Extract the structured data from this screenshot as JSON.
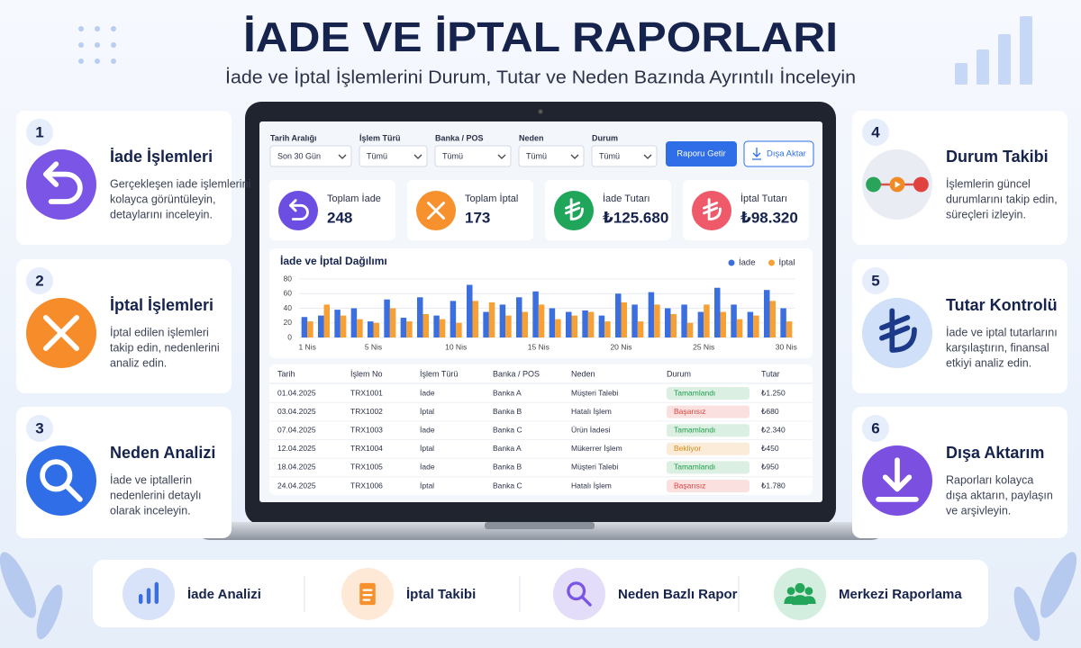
{
  "header": {
    "title": "İADE VE İPTAL RAPORLARI",
    "subtitle": "İade ve İptal İşlemlerini Durum, Tutar ve Neden Bazında Ayrıntılı İnceleyin"
  },
  "features": [
    {
      "number": 1,
      "title": "İade İşlemleri",
      "description": [
        "Gerçekleşen iade işlemlerini",
        "kolayca görüntüleyin,",
        "detaylarını inceleyin."
      ],
      "color": "#7a55e6"
    },
    {
      "number": 2,
      "title": "İptal İşlemleri",
      "description": [
        "İptal edilen işlemleri",
        "takip edin, nedenlerini",
        "analiz edin."
      ],
      "color": "#f78d2a"
    },
    {
      "number": 3,
      "title": "Neden Analizi",
      "description": [
        "İade ve iptallerin",
        "nedenlerini detaylı",
        "olarak inceleyin."
      ],
      "color": "#2f6ee6"
    },
    {
      "number": 4,
      "title": "Durum Takibi",
      "description": [
        "İşlemlerin güncel",
        "durumlarını takip edin,",
        "süreçleri izleyin."
      ],
      "color": "#e9edf3"
    },
    {
      "number": 5,
      "title": "Tutar Kontrolü",
      "description": [
        "İade ve iptal tutarlarını",
        "karşılaştırın, finansal",
        "etkiyi analiz edin."
      ],
      "color": "#cfe0f8"
    },
    {
      "number": 6,
      "title": "Dışa Aktarım",
      "description": [
        "Raporları kolayca",
        "dışa aktarın, paylaşın",
        "ve arşivleyin."
      ],
      "color": "#7b4fe0"
    }
  ],
  "dashboard": {
    "filters": [
      {
        "label": "Tarih Aralığı",
        "value": "Son 30 Gün"
      },
      {
        "label": "İşlem Türü",
        "value": "Tümü"
      },
      {
        "label": "Banka / POS",
        "value": "Tümü"
      },
      {
        "label": "Neden",
        "value": "Tümü"
      },
      {
        "label": "Durum",
        "value": "Tümü"
      }
    ],
    "buttons": [
      "Raporu Getir",
      "Dışa Aktar"
    ],
    "stats": [
      {
        "label": "Toplam İade",
        "value": 248,
        "color": "#6c4ee3"
      },
      {
        "label": "Toplam İptal",
        "value": 173,
        "color": "#f7912d"
      },
      {
        "label": "İade Tutarı",
        "value": "₺125.680",
        "color": "#1fa65a"
      },
      {
        "label": "İptal Tutarı",
        "value": "₺98.320",
        "color": "#ee5a6a"
      }
    ]
  },
  "chart_data": {
    "type": "bar",
    "title": "İade ve İptal Dağılımı",
    "categories": [
      "1 Nis",
      null,
      null,
      null,
      "5 Nis",
      null,
      null,
      null,
      null,
      "10 Nis",
      null,
      null,
      null,
      null,
      "15 Nis",
      null,
      null,
      null,
      null,
      "20 Nis",
      null,
      null,
      null,
      null,
      "25 Nis",
      null,
      null,
      null,
      null,
      "30 Nis"
    ],
    "series": [
      {
        "name": "İade",
        "color": "#3b6fe0",
        "values": [
          28,
          30,
          38,
          40,
          22,
          52,
          27,
          55,
          30,
          50,
          72,
          35,
          45,
          55,
          63,
          40,
          35,
          37,
          30,
          60,
          45,
          62,
          40,
          45,
          35,
          68,
          45,
          35,
          65,
          40
        ]
      },
      {
        "name": "İptal",
        "color": "#f7a035",
        "values": [
          22,
          45,
          30,
          25,
          20,
          40,
          22,
          32,
          25,
          20,
          50,
          48,
          30,
          35,
          45,
          25,
          30,
          35,
          22,
          48,
          22,
          45,
          32,
          20,
          45,
          35,
          25,
          30,
          50,
          22
        ]
      }
    ],
    "ylim": [
      0,
      80
    ],
    "yticks": [
      0,
      20,
      40,
      60,
      80
    ],
    "grid": true,
    "legend": "top-right"
  },
  "table": {
    "columns": [
      "Tarih",
      "İşlem No",
      "İşlem Türü",
      "Banka / POS",
      "Neden",
      "Durum",
      "Tutar"
    ],
    "rows": [
      [
        "01.04.2025",
        "TRX1001",
        "İade",
        "Banka A",
        "Müşteri Talebi",
        "Tamamlandı",
        "₺1.250"
      ],
      [
        "03.04.2025",
        "TRX1002",
        "İptal",
        "Banka B",
        "Hatalı İşlem",
        "Başarısız",
        "₺680"
      ],
      [
        "07.04.2025",
        "TRX1003",
        "İade",
        "Banka C",
        "Ürün İadesi",
        "Tamamlandı",
        "₺2.340"
      ],
      [
        "12.04.2025",
        "TRX1004",
        "İptal",
        "Banka A",
        "Mükerrer İşlem",
        "Bekliyor",
        "₺450"
      ],
      [
        "18.04.2025",
        "TRX1005",
        "İade",
        "Banka B",
        "Müşteri Talebi",
        "Tamamlandı",
        "₺950"
      ],
      [
        "24.04.2025",
        "TRX1006",
        "İptal",
        "Banka C",
        "Hatalı İşlem",
        "Başarısız",
        "₺1.780"
      ]
    ],
    "status_colors": [
      "#1e9e4a",
      "#e0433f",
      "#1e9e4a",
      "#e08a12",
      "#1e9e4a",
      "#e0433f"
    ]
  },
  "bottom_bar": [
    {
      "label": "İade Analizi",
      "color": "#3b6fe0"
    },
    {
      "label": "İptal Takibi",
      "color": "#f7912d"
    },
    {
      "label": "Neden Bazlı Rapor",
      "color": "#7a55e6"
    },
    {
      "label": "Merkezi Raporlama",
      "color": "#23a55a"
    }
  ]
}
